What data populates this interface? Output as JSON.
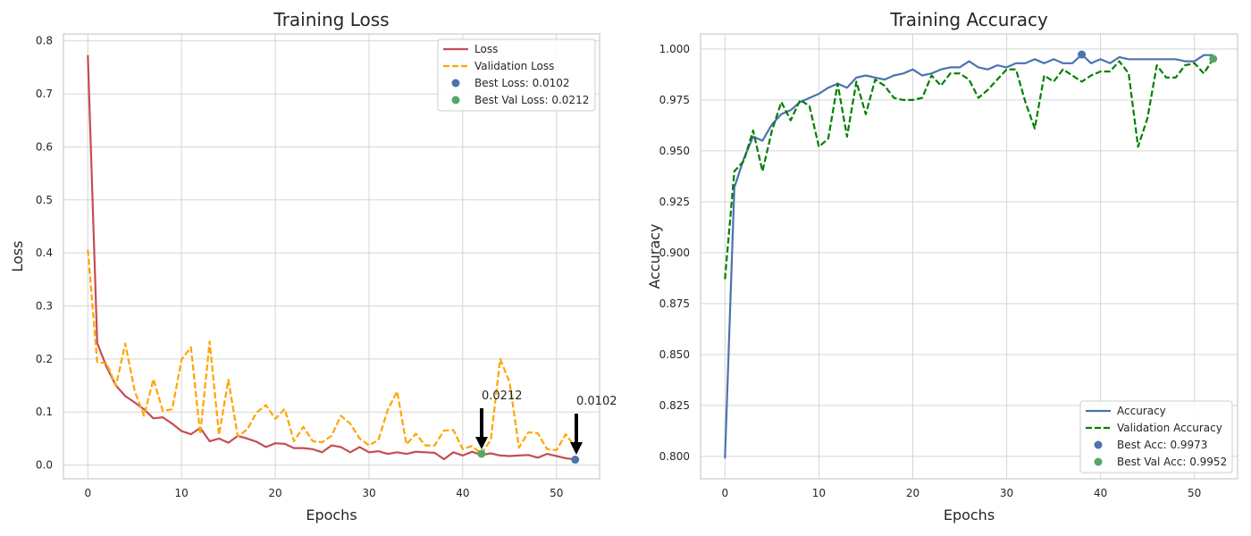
{
  "chart_data": [
    {
      "type": "line",
      "title": "Training Loss",
      "xlabel": "Epochs",
      "ylabel": "Loss",
      "xlim": [
        -2.6,
        54.6
      ],
      "ylim": [
        -0.026,
        0.813
      ],
      "xticks": [
        0,
        10,
        20,
        30,
        40,
        50
      ],
      "yticks": [
        0.0,
        0.1,
        0.2,
        0.3,
        0.4,
        0.5,
        0.6,
        0.7,
        0.8
      ],
      "ytick_labels": [
        "0.0",
        "0.1",
        "0.2",
        "0.3",
        "0.4",
        "0.5",
        "0.6",
        "0.7",
        "0.8"
      ],
      "grid": true,
      "legend_position": "top-right",
      "series": [
        {
          "name": "Loss",
          "color": "#c44e52",
          "style": "solid",
          "values": [
            0.773,
            0.23,
            0.185,
            0.15,
            0.13,
            0.118,
            0.105,
            0.088,
            0.09,
            0.078,
            0.064,
            0.058,
            0.07,
            0.045,
            0.05,
            0.042,
            0.055,
            0.05,
            0.044,
            0.034,
            0.041,
            0.04,
            0.032,
            0.032,
            0.03,
            0.024,
            0.037,
            0.034,
            0.024,
            0.034,
            0.024,
            0.026,
            0.021,
            0.024,
            0.021,
            0.025,
            0.024,
            0.023,
            0.011,
            0.024,
            0.018,
            0.025,
            0.019,
            0.022,
            0.018,
            0.017,
            0.018,
            0.019,
            0.014,
            0.021,
            0.017,
            0.013,
            0.0102
          ]
        },
        {
          "name": "Validation Loss",
          "color": "#ffa500",
          "style": "dashed",
          "values": [
            0.406,
            0.194,
            0.192,
            0.149,
            0.229,
            0.14,
            0.093,
            0.162,
            0.102,
            0.105,
            0.199,
            0.222,
            0.058,
            0.233,
            0.057,
            0.161,
            0.054,
            0.067,
            0.099,
            0.113,
            0.087,
            0.106,
            0.045,
            0.072,
            0.045,
            0.043,
            0.055,
            0.093,
            0.078,
            0.05,
            0.037,
            0.047,
            0.104,
            0.139,
            0.039,
            0.059,
            0.037,
            0.037,
            0.065,
            0.066,
            0.03,
            0.036,
            0.0212,
            0.048,
            0.2,
            0.156,
            0.033,
            0.062,
            0.06,
            0.03,
            0.028,
            0.058,
            0.034
          ]
        }
      ],
      "markers": [
        {
          "name": "Best Loss: 0.0102",
          "x": 52,
          "y": 0.0102,
          "color": "#4c72b0"
        },
        {
          "name": "Best Val Loss: 0.0212",
          "x": 42,
          "y": 0.0212,
          "color": "#55a868"
        }
      ],
      "annotations": [
        {
          "text": "0.0212",
          "x": 42,
          "y": 0.0212
        },
        {
          "text": "0.0102",
          "x": 52,
          "y": 0.0102
        }
      ]
    },
    {
      "type": "line",
      "title": "Training Accuracy",
      "xlabel": "Epochs",
      "ylabel": "Accuracy",
      "xlim": [
        -2.6,
        54.6
      ],
      "ylim": [
        0.789,
        1.0074
      ],
      "xticks": [
        0,
        10,
        20,
        30,
        40,
        50
      ],
      "yticks": [
        0.8,
        0.825,
        0.85,
        0.875,
        0.9,
        0.925,
        0.95,
        0.975,
        1.0
      ],
      "ytick_labels": [
        "0.800",
        "0.825",
        "0.850",
        "0.875",
        "0.900",
        "0.925",
        "0.950",
        "0.975",
        "1.000"
      ],
      "grid": true,
      "legend_position": "bottom-right",
      "series": [
        {
          "name": "Accuracy",
          "color": "#4c72b0",
          "style": "solid",
          "values": [
            0.799,
            0.932,
            0.946,
            0.957,
            0.955,
            0.963,
            0.968,
            0.97,
            0.974,
            0.976,
            0.978,
            0.981,
            0.983,
            0.981,
            0.986,
            0.987,
            0.986,
            0.985,
            0.987,
            0.988,
            0.99,
            0.987,
            0.988,
            0.99,
            0.991,
            0.991,
            0.994,
            0.991,
            0.99,
            0.992,
            0.991,
            0.993,
            0.993,
            0.995,
            0.993,
            0.995,
            0.993,
            0.993,
            0.9973,
            0.993,
            0.995,
            0.993,
            0.996,
            0.995,
            0.995,
            0.995,
            0.995,
            0.995,
            0.995,
            0.994,
            0.994,
            0.997,
            0.997
          ]
        },
        {
          "name": "Validation Accuracy",
          "color": "#008000",
          "style": "dashed",
          "values": [
            0.887,
            0.94,
            0.945,
            0.96,
            0.94,
            0.96,
            0.974,
            0.965,
            0.975,
            0.972,
            0.952,
            0.956,
            0.983,
            0.957,
            0.984,
            0.968,
            0.985,
            0.982,
            0.976,
            0.975,
            0.975,
            0.976,
            0.987,
            0.982,
            0.988,
            0.988,
            0.985,
            0.976,
            0.98,
            0.985,
            0.99,
            0.99,
            0.974,
            0.961,
            0.987,
            0.984,
            0.99,
            0.987,
            0.984,
            0.987,
            0.989,
            0.989,
            0.994,
            0.988,
            0.952,
            0.966,
            0.992,
            0.986,
            0.986,
            0.992,
            0.993,
            0.988,
            0.9952
          ]
        }
      ],
      "markers": [
        {
          "name": "Best Acc: 0.9973",
          "x": 38,
          "y": 0.9973,
          "color": "#4c72b0"
        },
        {
          "name": "Best Val Acc: 0.9952",
          "x": 52,
          "y": 0.9952,
          "color": "#55a868"
        }
      ]
    }
  ]
}
